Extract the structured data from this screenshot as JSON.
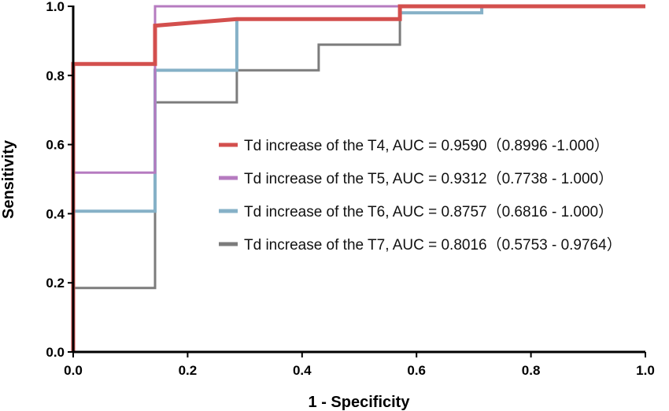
{
  "chart_data": {
    "type": "line",
    "title": "",
    "xlabel": "1 - Specificity",
    "ylabel": "Sensitivity",
    "xlim": [
      0,
      1
    ],
    "ylim": [
      0,
      1
    ],
    "xticks": [
      "0.0",
      "0.2",
      "0.4",
      "0.6",
      "0.8",
      "1.0"
    ],
    "yticks": [
      "0.0",
      "0.2",
      "0.4",
      "0.6",
      "0.8",
      "1.0"
    ],
    "grid": false,
    "legend_placement": "center-right",
    "series": [
      {
        "name": "Td increase of the T4, AUC = 0.9590（0.8996 -1.000）",
        "color": "#d34f4d",
        "x": [
          0,
          0,
          0.143,
          0.143,
          0.286,
          0.571,
          0.571,
          1.0
        ],
        "y": [
          0,
          0.833,
          0.833,
          0.944,
          0.963,
          0.963,
          1.0,
          1.0
        ]
      },
      {
        "name": "Td increase of the T5, AUC = 0.9312（0.7738 - 1.000）",
        "color": "#b67bc0",
        "x": [
          0,
          0,
          0.143,
          0.143,
          1.0
        ],
        "y": [
          0,
          0.519,
          0.519,
          1.0,
          1.0
        ]
      },
      {
        "name": "Td increase of the T6, AUC = 0.8757（0.6816 - 1.000）",
        "color": "#86b1c7",
        "x": [
          0,
          0,
          0.143,
          0.143,
          0.286,
          0.286,
          0.571,
          0.571,
          0.714,
          0.714,
          1.0
        ],
        "y": [
          0,
          0.407,
          0.407,
          0.815,
          0.815,
          0.963,
          0.963,
          0.981,
          0.981,
          1.0,
          1.0
        ]
      },
      {
        "name": "Td increase of the T7, AUC = 0.8016（0.5753 - 0.9764）",
        "color": "#7c7c7c",
        "x": [
          0,
          0,
          0.143,
          0.143,
          0.286,
          0.286,
          0.429,
          0.429,
          0.571,
          0.571,
          1.0
        ],
        "y": [
          0,
          0.185,
          0.185,
          0.722,
          0.722,
          0.815,
          0.815,
          0.889,
          0.889,
          1.0,
          1.0
        ]
      }
    ]
  }
}
